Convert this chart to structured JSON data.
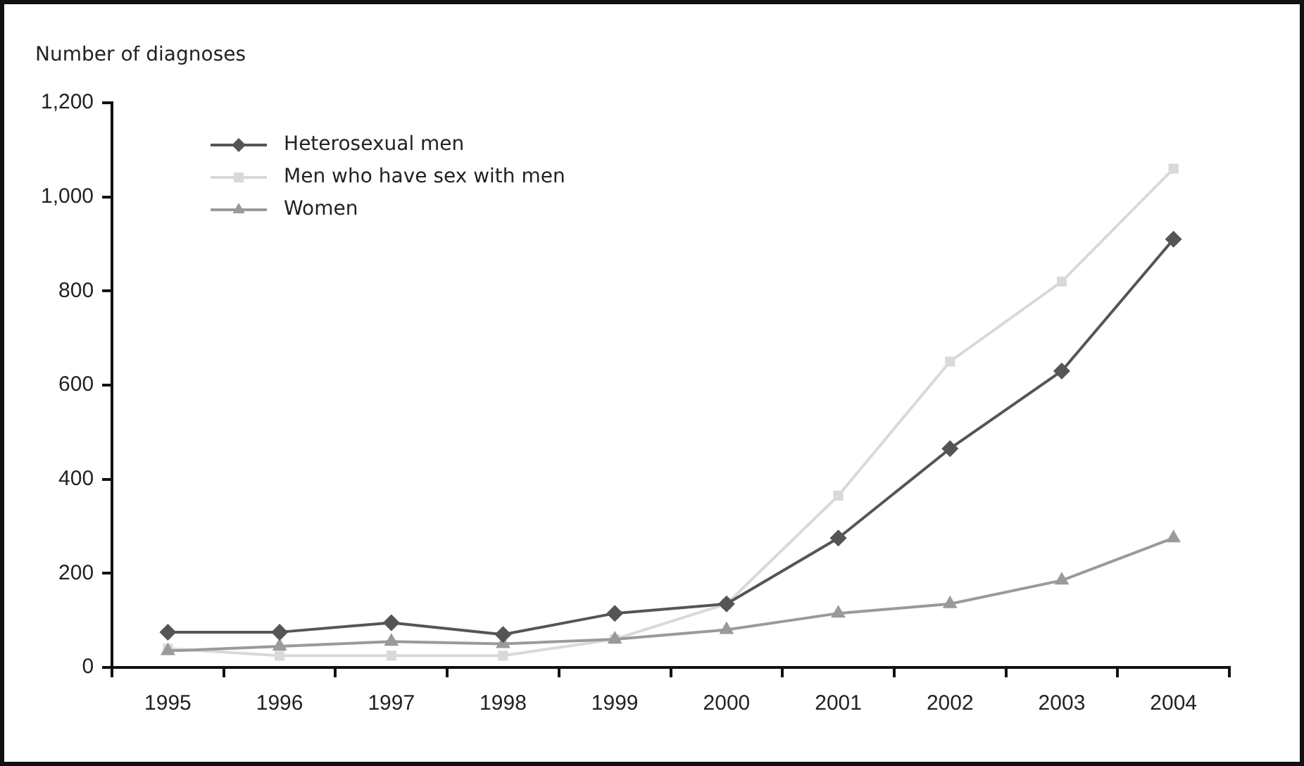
{
  "chart_data": {
    "type": "line",
    "ylabel": "Number of diagnoses",
    "categories": [
      "1995",
      "1996",
      "1997",
      "1998",
      "1999",
      "2000",
      "2001",
      "2002",
      "2003",
      "2004"
    ],
    "series": [
      {
        "name": "Heterosexual men",
        "color": "#555555",
        "marker": "diamond",
        "values": [
          75,
          75,
          95,
          70,
          115,
          135,
          275,
          465,
          630,
          910
        ]
      },
      {
        "name": "Men who have sex with men",
        "color": "#d9d9d9",
        "marker": "square",
        "values": [
          40,
          25,
          25,
          25,
          60,
          135,
          365,
          650,
          820,
          1060
        ]
      },
      {
        "name": "Women",
        "color": "#9a9a9a",
        "marker": "triangle",
        "values": [
          35,
          45,
          55,
          50,
          60,
          80,
          115,
          135,
          185,
          275
        ]
      }
    ],
    "ylim": [
      0,
      1200
    ],
    "yticks": [
      0,
      200,
      400,
      600,
      800,
      {
        "value": 1000,
        "label": "1,000"
      },
      {
        "value": 1200,
        "label": "1,200"
      }
    ],
    "grid": false,
    "legend": "top left",
    "line_style": "solid"
  }
}
